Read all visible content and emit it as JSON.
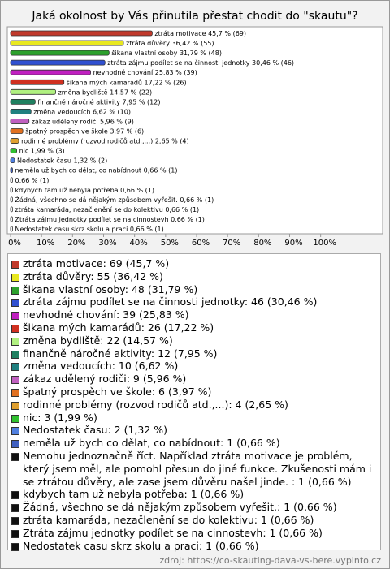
{
  "chart_data": {
    "type": "bar",
    "orientation": "horizontal",
    "title": "Jaká okolnost by Vás přinutila přestat chodit do \"skautu\"?",
    "categories": [
      "ztráta motivace",
      "ztráta důvěry",
      "šikana vlastní osoby",
      "ztráta zájmu podílet se na činnosti jednotky",
      "nevhodné chování",
      "šikana mých kamarádů",
      "změna bydliště",
      "finančně náročné aktivity",
      "změna vedoucích",
      "zákaz udělený rodiči",
      "špatný prospěch ve škole",
      "rodinné problémy (rozvod rodičů atd.,...)",
      "nic",
      "Nedostatek času",
      "neměla už bych co dělat, co nabídnout",
      null,
      "kdybych tam už nebyla potřeba",
      "Žádná, všechno se dá nějakým způsobem vyřešit.",
      "ztráta kamaráda, nezačlenění se do kolektivu",
      "Ztráta zájmu jednotky podílet se na cinnostevh",
      "Nedostatek casu skrz skolu a praci"
    ],
    "values": [
      45.7,
      36.42,
      31.79,
      30.46,
      25.83,
      17.22,
      14.57,
      7.95,
      6.62,
      5.96,
      3.97,
      2.65,
      1.99,
      1.32,
      0.66,
      0.66,
      0.66,
      0.66,
      0.66,
      0.66,
      0.66
    ],
    "value_labels": [
      "45,7 % (69)",
      "36,42 % (55)",
      "31,79 % (48)",
      "30,46 % (46)",
      "25,83 % (39)",
      "17,22 % (26)",
      "14,57 % (22)",
      "7,95 % (12)",
      "6,62 % (10)",
      "5,96 % (9)",
      "3,97 % (6)",
      "2,65 % (4)",
      "1,99 % (3)",
      "1,32 % (2)",
      "0,66 % (1)",
      "0,66 % (1)",
      "0,66 % (1)",
      "0,66 % (1)",
      "0,66 % (1)",
      "0,66 % (1)",
      "0,66 % (1)"
    ],
    "colors": [
      "#c0392b",
      "#e8e820",
      "#2ca02c",
      "#3050d0",
      "#c020c0",
      "#d03020",
      "#b0f080",
      "#208060",
      "#208080",
      "#c060c0",
      "#e07020",
      "#e0a030",
      "#30c030",
      "#5080e0",
      "#4060c0",
      "#f4f4f4",
      "#f4f4f4",
      "#f4f4f4",
      "#f4f4f4",
      "#f4f4f4",
      "#f4f4f4"
    ],
    "legend_colors": [
      "#c0392b",
      "#e8e820",
      "#2ca02c",
      "#3050d0",
      "#c020c0",
      "#d03020",
      "#b0f080",
      "#208060",
      "#208080",
      "#c060c0",
      "#e07020",
      "#e0a030",
      "#30c030",
      "#5080e0",
      "#4060c0",
      "#111111",
      "#111111",
      "#111111",
      "#111111",
      "#111111",
      "#111111"
    ],
    "legend": [
      "ztráta motivace: 69 (45,7 %)",
      "ztráta důvěry: 55 (36,42 %)",
      "šikana vlastní osoby: 48 (31,79 %)",
      "ztráta zájmu podílet se na činnosti jednotky: 46 (30,46 %)",
      "nevhodné chování: 39 (25,83 %)",
      "šikana mých kamarádů: 26 (17,22 %)",
      "změna bydliště: 22 (14,57 %)",
      "finančně náročné aktivity: 12 (7,95 %)",
      "změna vedoucích: 10 (6,62 %)",
      "zákaz udělený rodiči: 9 (5,96 %)",
      "špatný prospěch ve škole: 6 (3,97 %)",
      "rodinné problémy (rozvod rodičů atd.,...): 4 (2,65 %)",
      "nic: 3 (1,99 %)",
      "Nedostatek času: 2 (1,32 %)",
      "neměla už bych co dělat, co nabídnout: 1 (0,66 %)",
      "Nemohu jednoznačně říct. Například ztráta motivace je problém, který jsem měl, ale pomohl přesun do jiné funkce. Zkušenosti mám i se ztrátou důvěry, ale zase jsem důvěru našel jinde. : 1 (0,66 %)",
      "kdybych tam už nebyla potřeba: 1 (0,66 %)",
      "Žádná, všechno se dá nějakým způsobem vyřešit.: 1 (0,66 %)",
      "ztráta kamaráda, nezačlenění se do kolektivu: 1 (0,66 %)",
      "Ztráta zájmu jednotky podílet se na cinnostevh: 1 (0,66 %)",
      "Nedostatek casu skrz skolu a praci: 1 (0,66 %)"
    ],
    "xlim": [
      0,
      120
    ],
    "xticks": [
      {
        "value": 0,
        "label": "0%"
      },
      {
        "value": 10,
        "label": "10%"
      },
      {
        "value": 20,
        "label": "20%"
      },
      {
        "value": 30,
        "label": "30%"
      },
      {
        "value": 40,
        "label": "40%"
      },
      {
        "value": 50,
        "label": "50%"
      },
      {
        "value": 60,
        "label": "60%"
      },
      {
        "value": 70,
        "label": "70%"
      },
      {
        "value": 80,
        "label": "80%"
      },
      {
        "value": 90,
        "label": "90%"
      },
      {
        "value": 100,
        "label": "100%"
      }
    ],
    "source": "zdroj: https://co-skauting-dava-vs-bere.vyplnto.cz"
  }
}
